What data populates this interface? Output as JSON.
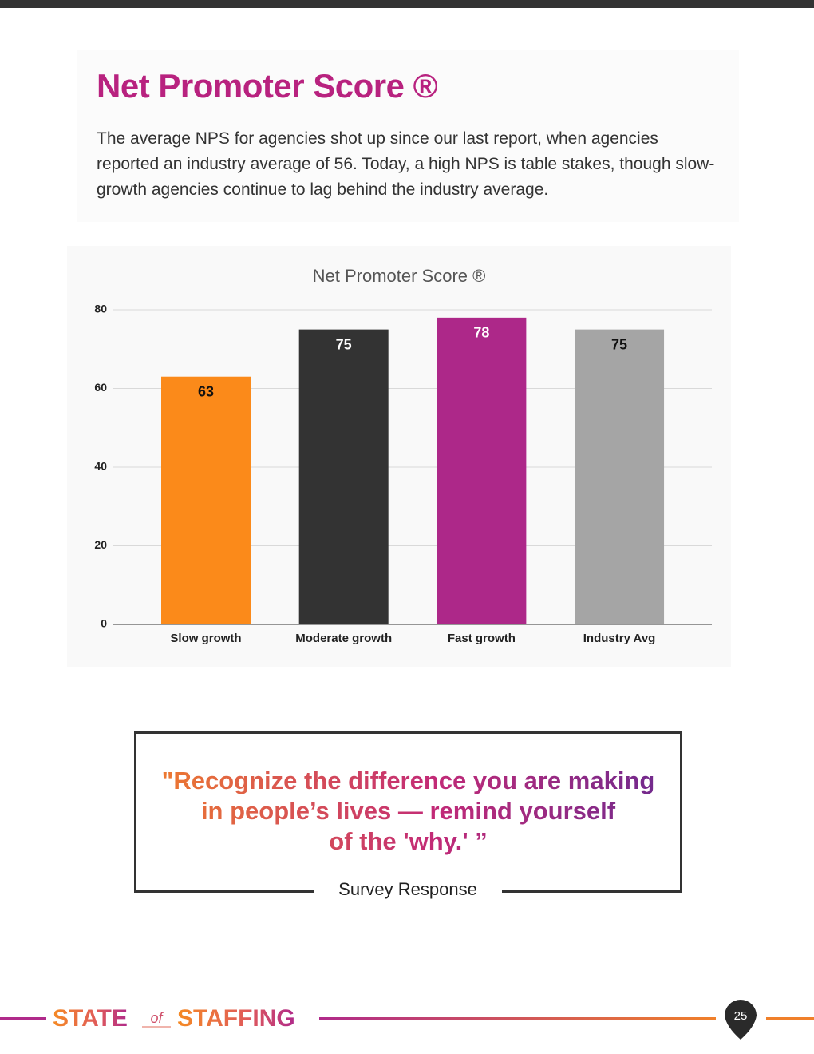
{
  "heading": {
    "title": "Net Promoter Score ®",
    "body": "The average NPS for agencies shot up since our last report, when agencies reported an industry average of 56. Today, a high NPS is table stakes, though slow-growth agencies continue to lag behind the industry average."
  },
  "chart_data": {
    "type": "bar",
    "title": "Net Promoter Score ®",
    "categories": [
      "Slow growth",
      "Moderate growth",
      "Fast growth",
      "Industry Avg"
    ],
    "values": [
      63,
      75,
      78,
      75
    ],
    "colors": [
      "#fb8a1a",
      "#333333",
      "#ad2889",
      "#a5a5a5"
    ],
    "ylim": [
      0,
      80
    ],
    "yticks": [
      0,
      20,
      40,
      60,
      80
    ],
    "grid": true
  },
  "quote": {
    "lines": [
      "\"Recognize the difference you are making",
      "in people’s lives — remind yourself",
      "of the 'why.' ”"
    ],
    "attribution": "Survey Response"
  },
  "footer": {
    "brand_start": "STATE",
    "brand_of": "of",
    "brand_end": "STAFFING",
    "page_number": "25"
  }
}
